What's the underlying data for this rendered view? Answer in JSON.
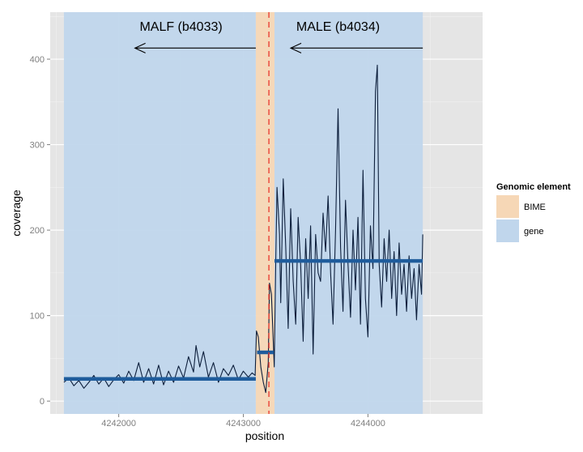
{
  "chart_data": {
    "type": "line",
    "xlabel": "position",
    "ylabel": "coverage",
    "xlim": [
      4241450,
      4244920
    ],
    "ylim": [
      -15,
      455
    ],
    "x_ticks": [
      4242000,
      4243000,
      4244000
    ],
    "x_tick_labels": [
      "4242000",
      "4243000",
      "4244000"
    ],
    "y_ticks": [
      0,
      100,
      200,
      300,
      400
    ],
    "y_tick_labels": [
      "0",
      "100",
      "200",
      "300",
      "400"
    ],
    "grid": true,
    "legend": {
      "title": "Genomic element",
      "placement": "right",
      "entries": [
        {
          "label": "BIME",
          "color": "#f6d7b6"
        },
        {
          "label": "gene",
          "color": "#c0d6ec"
        }
      ]
    },
    "regions": [
      {
        "type": "gene",
        "x_start": 4241560,
        "x_end": 4243100
      },
      {
        "type": "BIME",
        "x_start": 4243100,
        "x_end": 4243250
      },
      {
        "type": "gene",
        "x_start": 4243250,
        "x_end": 4244440
      }
    ],
    "vline": {
      "x": 4243205,
      "color": "#e8352b",
      "style": "dashed"
    },
    "annotations": [
      {
        "text": "MALF (b4033)",
        "x": 4242500,
        "y": 433,
        "arrow_from": 4243100,
        "arrow_to": 4242130,
        "arrow_y": 413
      },
      {
        "text": "MALE (b4034)",
        "x": 4243760,
        "y": 433,
        "arrow_from": 4244440,
        "arrow_to": 4243380,
        "arrow_y": 413
      }
    ],
    "mean_segments": [
      {
        "x_start": 4241560,
        "x_end": 4243100,
        "y": 26
      },
      {
        "x_start": 4243110,
        "x_end": 4243245,
        "y": 57
      },
      {
        "x_start": 4243250,
        "x_end": 4244440,
        "y": 164
      }
    ],
    "series": [
      {
        "color": "#0d1f3c",
        "points": [
          [
            4241560,
            22
          ],
          [
            4241600,
            27
          ],
          [
            4241640,
            18
          ],
          [
            4241680,
            24
          ],
          [
            4241720,
            15
          ],
          [
            4241760,
            22
          ],
          [
            4241800,
            30
          ],
          [
            4241840,
            20
          ],
          [
            4241880,
            27
          ],
          [
            4241920,
            17
          ],
          [
            4241960,
            25
          ],
          [
            4242000,
            31
          ],
          [
            4242040,
            21
          ],
          [
            4242080,
            35
          ],
          [
            4242120,
            24
          ],
          [
            4242160,
            45
          ],
          [
            4242200,
            22
          ],
          [
            4242240,
            38
          ],
          [
            4242280,
            20
          ],
          [
            4242320,
            42
          ],
          [
            4242360,
            19
          ],
          [
            4242400,
            35
          ],
          [
            4242440,
            22
          ],
          [
            4242480,
            41
          ],
          [
            4242520,
            27
          ],
          [
            4242560,
            52
          ],
          [
            4242600,
            34
          ],
          [
            4242620,
            65
          ],
          [
            4242650,
            40
          ],
          [
            4242680,
            58
          ],
          [
            4242720,
            28
          ],
          [
            4242760,
            45
          ],
          [
            4242800,
            22
          ],
          [
            4242840,
            38
          ],
          [
            4242880,
            30
          ],
          [
            4242920,
            42
          ],
          [
            4242960,
            25
          ],
          [
            4243000,
            35
          ],
          [
            4243040,
            28
          ],
          [
            4243070,
            33
          ],
          [
            4243095,
            30
          ],
          [
            4243105,
            82
          ],
          [
            4243120,
            75
          ],
          [
            4243140,
            40
          ],
          [
            4243160,
            22
          ],
          [
            4243180,
            10
          ],
          [
            4243200,
            45
          ],
          [
            4243210,
            138
          ],
          [
            4243225,
            125
          ],
          [
            4243240,
            70
          ],
          [
            4243248,
            40
          ],
          [
            4243260,
            160
          ],
          [
            4243270,
            250
          ],
          [
            4243290,
            195
          ],
          [
            4243300,
            115
          ],
          [
            4243320,
            260
          ],
          [
            4243340,
            180
          ],
          [
            4243360,
            85
          ],
          [
            4243380,
            225
          ],
          [
            4243400,
            140
          ],
          [
            4243420,
            90
          ],
          [
            4243440,
            215
          ],
          [
            4243460,
            160
          ],
          [
            4243480,
            70
          ],
          [
            4243500,
            190
          ],
          [
            4243520,
            120
          ],
          [
            4243540,
            205
          ],
          [
            4243560,
            55
          ],
          [
            4243580,
            195
          ],
          [
            4243600,
            150
          ],
          [
            4243620,
            140
          ],
          [
            4243640,
            220
          ],
          [
            4243660,
            175
          ],
          [
            4243680,
            240
          ],
          [
            4243700,
            150
          ],
          [
            4243720,
            90
          ],
          [
            4243740,
            200
          ],
          [
            4243760,
            342
          ],
          [
            4243780,
            180
          ],
          [
            4243800,
            105
          ],
          [
            4243820,
            235
          ],
          [
            4243840,
            160
          ],
          [
            4243860,
            98
          ],
          [
            4243880,
            200
          ],
          [
            4243900,
            130
          ],
          [
            4243920,
            215
          ],
          [
            4243940,
            90
          ],
          [
            4243960,
            270
          ],
          [
            4243980,
            120
          ],
          [
            4244000,
            75
          ],
          [
            4244020,
            205
          ],
          [
            4244040,
            155
          ],
          [
            4244060,
            362
          ],
          [
            4244075,
            393
          ],
          [
            4244090,
            160
          ],
          [
            4244110,
            110
          ],
          [
            4244130,
            190
          ],
          [
            4244150,
            140
          ],
          [
            4244170,
            200
          ],
          [
            4244190,
            120
          ],
          [
            4244210,
            175
          ],
          [
            4244230,
            100
          ],
          [
            4244250,
            185
          ],
          [
            4244270,
            125
          ],
          [
            4244290,
            160
          ],
          [
            4244310,
            105
          ],
          [
            4244330,
            170
          ],
          [
            4244350,
            120
          ],
          [
            4244370,
            155
          ],
          [
            4244390,
            95
          ],
          [
            4244410,
            160
          ],
          [
            4244430,
            125
          ],
          [
            4244440,
            195
          ]
        ]
      }
    ]
  }
}
